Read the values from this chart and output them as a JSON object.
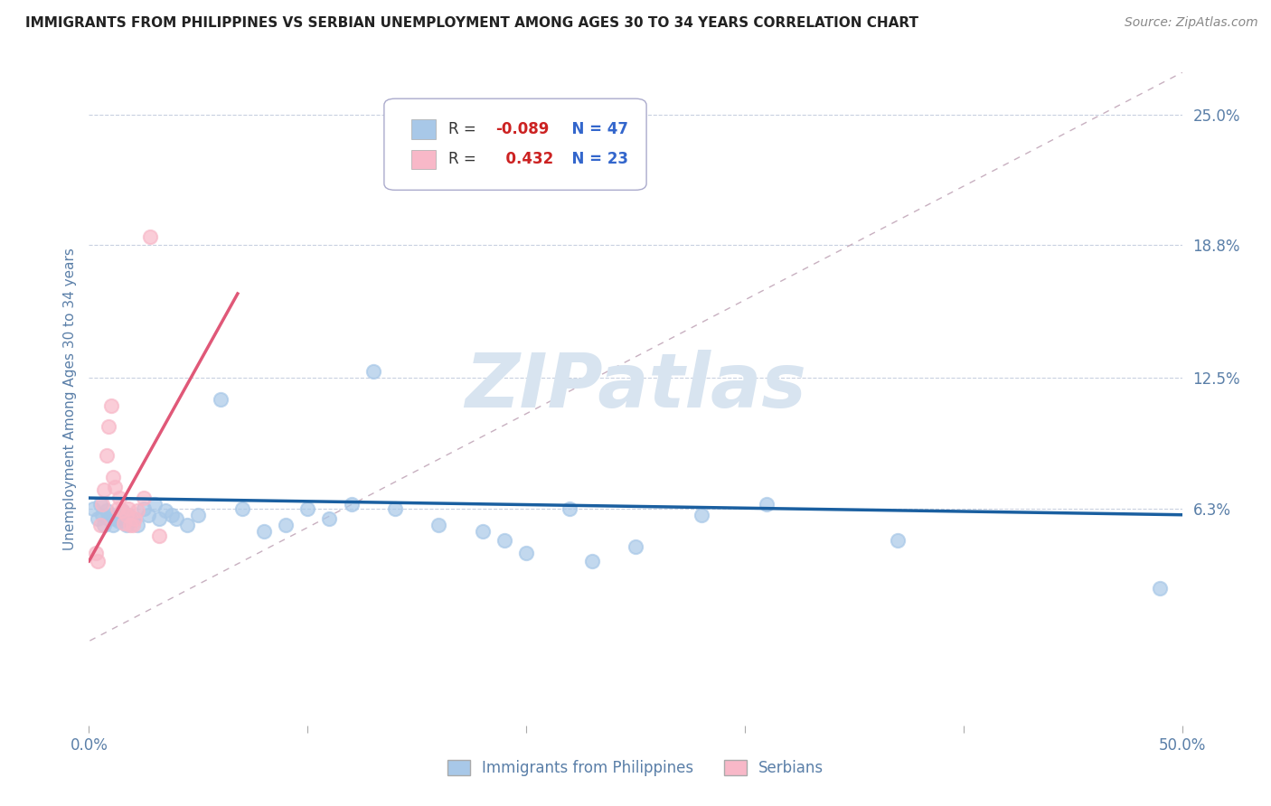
{
  "title": "IMMIGRANTS FROM PHILIPPINES VS SERBIAN UNEMPLOYMENT AMONG AGES 30 TO 34 YEARS CORRELATION CHART",
  "source": "Source: ZipAtlas.com",
  "ylabel": "Unemployment Among Ages 30 to 34 years",
  "xlim": [
    0.0,
    0.5
  ],
  "ylim": [
    -0.04,
    0.27
  ],
  "yticks": [
    0.063,
    0.125,
    0.188,
    0.25
  ],
  "ytick_labels": [
    "6.3%",
    "12.5%",
    "18.8%",
    "25.0%"
  ],
  "xticks": [
    0.0,
    0.1,
    0.2,
    0.3,
    0.4,
    0.5
  ],
  "xtick_edge_labels": [
    "0.0%",
    "50.0%"
  ],
  "legend_r1_label": "R = ",
  "legend_r1_val": "-0.089",
  "legend_n1": "N = 47",
  "legend_r2_label": "R = ",
  "legend_r2_val": "  0.432",
  "legend_n2": "N = 23",
  "blue_color": "#a8c8e8",
  "pink_color": "#f8b8c8",
  "blue_line_color": "#1a5fa0",
  "pink_line_color": "#e05878",
  "ref_line_color": "#c8b0c0",
  "scatter_blue": [
    [
      0.002,
      0.063
    ],
    [
      0.004,
      0.058
    ],
    [
      0.005,
      0.065
    ],
    [
      0.006,
      0.06
    ],
    [
      0.007,
      0.055
    ],
    [
      0.008,
      0.062
    ],
    [
      0.009,
      0.058
    ],
    [
      0.01,
      0.06
    ],
    [
      0.011,
      0.055
    ],
    [
      0.012,
      0.058
    ],
    [
      0.013,
      0.06
    ],
    [
      0.014,
      0.057
    ],
    [
      0.015,
      0.062
    ],
    [
      0.016,
      0.058
    ],
    [
      0.017,
      0.055
    ],
    [
      0.018,
      0.06
    ],
    [
      0.02,
      0.058
    ],
    [
      0.022,
      0.055
    ],
    [
      0.025,
      0.063
    ],
    [
      0.027,
      0.06
    ],
    [
      0.03,
      0.065
    ],
    [
      0.032,
      0.058
    ],
    [
      0.035,
      0.062
    ],
    [
      0.038,
      0.06
    ],
    [
      0.04,
      0.058
    ],
    [
      0.045,
      0.055
    ],
    [
      0.05,
      0.06
    ],
    [
      0.06,
      0.115
    ],
    [
      0.07,
      0.063
    ],
    [
      0.08,
      0.052
    ],
    [
      0.09,
      0.055
    ],
    [
      0.1,
      0.063
    ],
    [
      0.11,
      0.058
    ],
    [
      0.12,
      0.065
    ],
    [
      0.13,
      0.128
    ],
    [
      0.14,
      0.063
    ],
    [
      0.16,
      0.055
    ],
    [
      0.18,
      0.052
    ],
    [
      0.19,
      0.048
    ],
    [
      0.2,
      0.042
    ],
    [
      0.22,
      0.063
    ],
    [
      0.23,
      0.038
    ],
    [
      0.25,
      0.045
    ],
    [
      0.28,
      0.06
    ],
    [
      0.31,
      0.065
    ],
    [
      0.37,
      0.048
    ],
    [
      0.49,
      0.025
    ]
  ],
  "scatter_pink": [
    [
      0.003,
      0.042
    ],
    [
      0.004,
      0.038
    ],
    [
      0.005,
      0.055
    ],
    [
      0.006,
      0.065
    ],
    [
      0.007,
      0.072
    ],
    [
      0.008,
      0.088
    ],
    [
      0.009,
      0.102
    ],
    [
      0.01,
      0.112
    ],
    [
      0.011,
      0.078
    ],
    [
      0.012,
      0.073
    ],
    [
      0.013,
      0.063
    ],
    [
      0.014,
      0.068
    ],
    [
      0.015,
      0.062
    ],
    [
      0.016,
      0.056
    ],
    [
      0.017,
      0.06
    ],
    [
      0.018,
      0.063
    ],
    [
      0.019,
      0.055
    ],
    [
      0.02,
      0.055
    ],
    [
      0.021,
      0.058
    ],
    [
      0.022,
      0.062
    ],
    [
      0.025,
      0.068
    ],
    [
      0.028,
      0.192
    ],
    [
      0.032,
      0.05
    ]
  ],
  "watermark": "ZIPatlas",
  "watermark_color": "#d8e4f0",
  "background_color": "#ffffff",
  "grid_color": "#c8d0e0",
  "title_color": "#222222",
  "source_color": "#888888",
  "axis_label_color": "#5a7fa8",
  "tick_label_color": "#5a7fa8"
}
